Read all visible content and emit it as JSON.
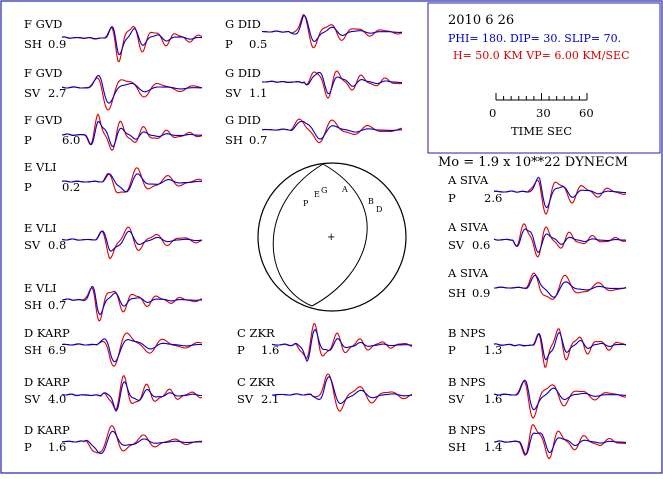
{
  "event": {
    "date": "2010   6  26",
    "mechanism": "PHI= 180. DIP= 30. SLIP=  70.",
    "depth_velocity": "H= 50.0 KM  VP= 6.00 KM/SEC",
    "moment": "Mo =  1.9 x 10**22 DYNECM"
  },
  "time_scale": {
    "ticks": [
      "0",
      "30",
      "60"
    ],
    "label": "TIME   SEC"
  },
  "colors": {
    "observed": "#0000cc",
    "synthetic": "#dd0000",
    "frame": "#2222aa",
    "text": "#000000"
  },
  "focal_sphere": {
    "stations": [
      "P",
      "E",
      "G",
      "A",
      "B",
      "D"
    ],
    "center_mark": "+"
  },
  "traces": [
    {
      "station": "F GVD",
      "component": "SH",
      "amp": "0.9"
    },
    {
      "station": "F GVD",
      "component": "SV",
      "amp": "2.7"
    },
    {
      "station": "F GVD",
      "component": "P",
      "amp": "6.0"
    },
    {
      "station": "E VLI",
      "component": "P",
      "amp": "0.2"
    },
    {
      "station": "E VLI",
      "component": "SV",
      "amp": "0.8"
    },
    {
      "station": "E VLI",
      "component": "SH",
      "amp": "0.7"
    },
    {
      "station": "D KARP",
      "component": "SH",
      "amp": "6.9"
    },
    {
      "station": "D KARP",
      "component": "SV",
      "amp": "4.0"
    },
    {
      "station": "D KARP",
      "component": "P",
      "amp": "1.6"
    },
    {
      "station": "G DID",
      "component": "P",
      "amp": "0.5"
    },
    {
      "station": "G DID",
      "component": "SV",
      "amp": "1.1"
    },
    {
      "station": "G DID",
      "component": "SH",
      "amp": "0.7"
    },
    {
      "station": "C ZKR",
      "component": "P",
      "amp": "1.6"
    },
    {
      "station": "C ZKR",
      "component": "SV",
      "amp": "2.1"
    },
    {
      "station": "A SIVA",
      "component": "P",
      "amp": "2.6"
    },
    {
      "station": "A SIVA",
      "component": "SV",
      "amp": "0.6"
    },
    {
      "station": "A SIVA",
      "component": "SH",
      "amp": "0.9"
    },
    {
      "station": "B NPS",
      "component": "P",
      "amp": "1.3"
    },
    {
      "station": "B NPS",
      "component": "SV",
      "amp": "1.6"
    },
    {
      "station": "B NPS",
      "component": "SH",
      "amp": "1.4"
    }
  ]
}
